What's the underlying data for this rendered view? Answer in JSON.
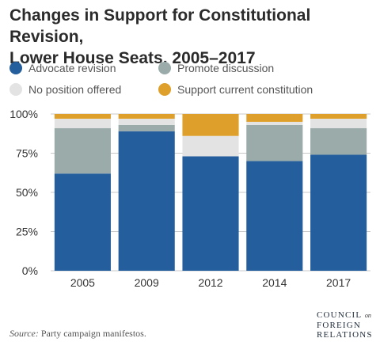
{
  "title_line1": "Changes in Support for Constitutional Revision,",
  "title_line2": "Lower House Seats, 2005–2017",
  "source_label": "Source:",
  "source_text": " Party campaign manifestos.",
  "logo": {
    "line1": "COUNCIL",
    "on": "on",
    "line2": "FOREIGN",
    "line3": "RELATIONS"
  },
  "colors": {
    "advocate": "#245e9d",
    "promote": "#9aabaa",
    "no_position": "#e3e3e3",
    "support": "#dea02b",
    "gridline": "#c8c8c8",
    "tick_text": "#333333"
  },
  "chart_data": {
    "type": "bar",
    "stacked": true,
    "categories": [
      "2005",
      "2009",
      "2012",
      "2014",
      "2017"
    ],
    "ylim": [
      0,
      100
    ],
    "yticks": [
      0,
      25,
      50,
      75,
      100
    ],
    "ytick_labels": [
      "0%",
      "25%",
      "50%",
      "75%",
      "100%"
    ],
    "grid": true,
    "legend_position": "top",
    "series": [
      {
        "name": "Advocate revision",
        "color_key": "advocate",
        "values": [
          62,
          89,
          73,
          70,
          74
        ]
      },
      {
        "name": "Promote discussion",
        "color_key": "promote",
        "values": [
          29,
          4,
          0,
          23,
          17
        ]
      },
      {
        "name": "No position offered",
        "color_key": "no_position",
        "values": [
          6,
          4,
          13,
          2,
          6
        ]
      },
      {
        "name": "Support current constitution",
        "color_key": "support",
        "values": [
          3,
          3,
          14,
          5,
          3
        ]
      }
    ]
  }
}
